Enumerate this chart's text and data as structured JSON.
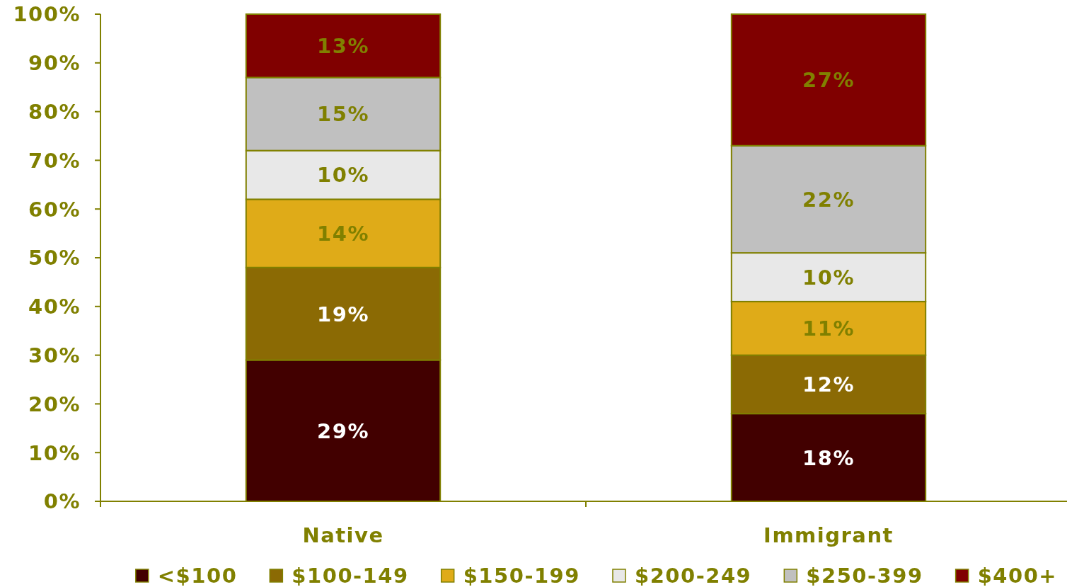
{
  "chart_data": {
    "type": "bar",
    "stacked": true,
    "categories": [
      "Native",
      "Immigrant"
    ],
    "series": [
      {
        "name": "<$100",
        "color": "#420000",
        "values": [
          29,
          18
        ],
        "value_labels": [
          "29%",
          "18%"
        ]
      },
      {
        "name": "$100-149",
        "color": "#8b6a04",
        "values": [
          19,
          12
        ],
        "value_labels": [
          "19%",
          "12%"
        ]
      },
      {
        "name": "$150-199",
        "color": "#dfab18",
        "values": [
          14,
          11
        ],
        "value_labels": [
          "14%",
          "11%"
        ]
      },
      {
        "name": "$200-249",
        "color": "#e8e8e8",
        "values": [
          10,
          10
        ],
        "value_labels": [
          "10%",
          "10%"
        ]
      },
      {
        "name": "$250-399",
        "color": "#c0c0c0",
        "values": [
          15,
          22
        ],
        "value_labels": [
          "15%",
          "22%"
        ]
      },
      {
        "name": "$400+",
        "color": "#800000",
        "values": [
          13,
          27
        ],
        "value_labels": [
          "13%",
          "27%"
        ]
      }
    ],
    "ylim": [
      0,
      100
    ],
    "yticks": [
      {
        "value": 0,
        "label": "0%"
      },
      {
        "value": 10,
        "label": "10%"
      },
      {
        "value": 20,
        "label": "20%"
      },
      {
        "value": 30,
        "label": "30%"
      },
      {
        "value": 40,
        "label": "40%"
      },
      {
        "value": 50,
        "label": "50%"
      },
      {
        "value": 60,
        "label": "60%"
      },
      {
        "value": 70,
        "label": "70%"
      },
      {
        "value": 80,
        "label": "80%"
      },
      {
        "value": 90,
        "label": "90%"
      },
      {
        "value": 100,
        "label": "100%"
      }
    ],
    "grid": false,
    "legend": "bottom"
  }
}
